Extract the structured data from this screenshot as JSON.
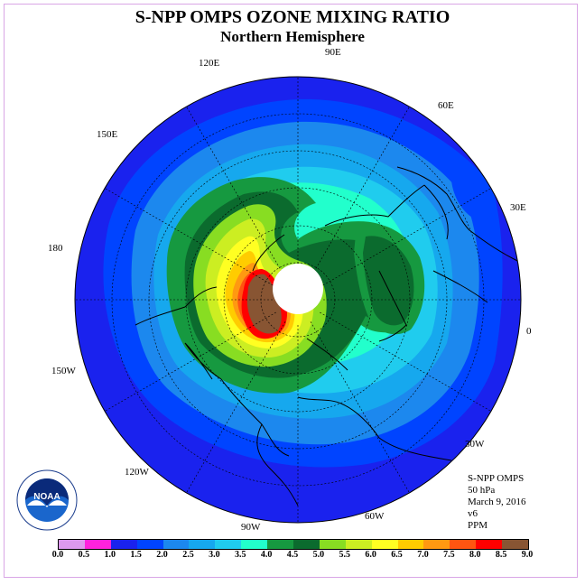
{
  "title": "S-NPP OMPS OZONE MIXING RATIO",
  "subtitle": "Northern Hemisphere",
  "longitude_labels": [
    "90E",
    "60E",
    "30E",
    "0",
    "30W",
    "60W",
    "90W",
    "120W",
    "150W",
    "180",
    "150E",
    "120E"
  ],
  "info": {
    "instrument": "S-NPP OMPS",
    "level": "50 hPa",
    "date": "March 9, 2016",
    "version": "v6",
    "units": "PPM"
  },
  "logo": {
    "icon": "noaa-logo",
    "text": "NOAA"
  },
  "colorbar": {
    "labels": [
      "0.0",
      "0.5",
      "1.0",
      "1.5",
      "2.0",
      "2.5",
      "3.0",
      "3.5",
      "4.0",
      "4.5",
      "5.0",
      "5.5",
      "6.0",
      "6.5",
      "7.0",
      "7.5",
      "8.0",
      "8.5",
      "9.0"
    ],
    "colors": [
      "#bb88ee",
      "#dd99ee",
      "#ff22dd",
      "#1a22ee",
      "#0044ff",
      "#1c88ee",
      "#16a8ee",
      "#20ccee",
      "#22ffcc",
      "#169940",
      "#0b6b2e",
      "#88dd22",
      "#ccee22",
      "#ffff22",
      "#ffcc00",
      "#ff9911",
      "#ff5511",
      "#ff0000",
      "#885533"
    ]
  }
}
